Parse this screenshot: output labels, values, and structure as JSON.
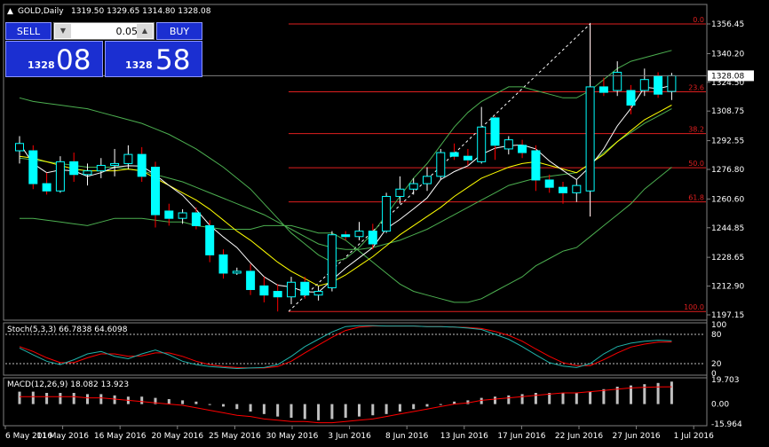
{
  "header": {
    "arrow": "▲",
    "symbol": "GOLD,Daily",
    "ohlc": "1319.50 1329.65 1314.80 1328.08"
  },
  "trade_panel": {
    "sell_label": "SELL",
    "buy_label": "BUY",
    "lot": "0.05",
    "sell_big": "1328",
    "sell_pips": "08",
    "buy_big": "1328",
    "buy_pips": "58"
  },
  "colors": {
    "bull": "#00ffff",
    "bear": "#ff0000",
    "bands": "#4caf50",
    "ma": "#ffff00",
    "price_line": "#ffffff",
    "fib": "#e01f1f",
    "stoch_main": "#20b2aa",
    "stoch_signal": "#ff0000",
    "macd_hist": "#c0c0c0",
    "macd_signal": "#ff0000"
  },
  "chart_data": {
    "type": "candlestick",
    "symbol": "GOLD",
    "timeframe": "Daily",
    "current_price": 1328.08,
    "price_axis": {
      "ylim": [
        1197.15,
        1356.45
      ],
      "ticks": [
        "1356.45",
        "1340.20",
        "1324.50",
        "1308.75",
        "1292.55",
        "1276.80",
        "1260.60",
        "1244.85",
        "1228.65",
        "1212.90",
        "1197.15"
      ],
      "current_label": "1328.08"
    },
    "x_labels": [
      "6 May 2016",
      "11 May 2016",
      "16 May 2016",
      "20 May 2016",
      "25 May 2016",
      "30 May 2016",
      "3 Jun 2016",
      "8 Jun 2016",
      "13 Jun 2016",
      "17 Jun 2016",
      "22 Jun 2016",
      "27 Jun 2016",
      "1 Jul 2016"
    ],
    "candles": [
      {
        "o": 1287,
        "h": 1295,
        "l": 1280,
        "c": 1291
      },
      {
        "o": 1287,
        "h": 1290,
        "l": 1266,
        "c": 1269
      },
      {
        "o": 1269,
        "h": 1275,
        "l": 1263,
        "c": 1265
      },
      {
        "o": 1265,
        "h": 1284,
        "l": 1264,
        "c": 1281
      },
      {
        "o": 1281,
        "h": 1286,
        "l": 1270,
        "c": 1274
      },
      {
        "o": 1274,
        "h": 1280,
        "l": 1268,
        "c": 1276
      },
      {
        "o": 1276,
        "h": 1283,
        "l": 1272,
        "c": 1279
      },
      {
        "o": 1279,
        "h": 1288,
        "l": 1273,
        "c": 1280
      },
      {
        "o": 1280,
        "h": 1290,
        "l": 1277,
        "c": 1285
      },
      {
        "o": 1285,
        "h": 1289,
        "l": 1270,
        "c": 1273
      },
      {
        "o": 1278,
        "h": 1281,
        "l": 1245,
        "c": 1252
      },
      {
        "o": 1254,
        "h": 1258,
        "l": 1246,
        "c": 1250
      },
      {
        "o": 1250,
        "h": 1255,
        "l": 1247,
        "c": 1253
      },
      {
        "o": 1253,
        "h": 1256,
        "l": 1244,
        "c": 1246
      },
      {
        "o": 1246,
        "h": 1249,
        "l": 1226,
        "c": 1230
      },
      {
        "o": 1230,
        "h": 1233,
        "l": 1217,
        "c": 1220
      },
      {
        "o": 1220,
        "h": 1223,
        "l": 1219,
        "c": 1221
      },
      {
        "o": 1221,
        "h": 1225,
        "l": 1208,
        "c": 1211
      },
      {
        "o": 1213,
        "h": 1218,
        "l": 1204,
        "c": 1208
      },
      {
        "o": 1210,
        "h": 1214,
        "l": 1199,
        "c": 1207
      },
      {
        "o": 1207,
        "h": 1218,
        "l": 1203,
        "c": 1215
      },
      {
        "o": 1215,
        "h": 1218,
        "l": 1206,
        "c": 1208
      },
      {
        "o": 1208,
        "h": 1213,
        "l": 1205,
        "c": 1210
      },
      {
        "o": 1212,
        "h": 1243,
        "l": 1210,
        "c": 1241
      },
      {
        "o": 1241,
        "h": 1243,
        "l": 1238,
        "c": 1240
      },
      {
        "o": 1240,
        "h": 1248,
        "l": 1238,
        "c": 1243
      },
      {
        "o": 1243,
        "h": 1247,
        "l": 1233,
        "c": 1236
      },
      {
        "o": 1243,
        "h": 1264,
        "l": 1242,
        "c": 1262
      },
      {
        "o": 1262,
        "h": 1273,
        "l": 1258,
        "c": 1266
      },
      {
        "o": 1266,
        "h": 1272,
        "l": 1263,
        "c": 1269
      },
      {
        "o": 1269,
        "h": 1278,
        "l": 1265,
        "c": 1273
      },
      {
        "o": 1273,
        "h": 1288,
        "l": 1271,
        "c": 1286
      },
      {
        "o": 1286,
        "h": 1291,
        "l": 1282,
        "c": 1284
      },
      {
        "o": 1284,
        "h": 1288,
        "l": 1279,
        "c": 1282
      },
      {
        "o": 1281,
        "h": 1311,
        "l": 1280,
        "c": 1300
      },
      {
        "o": 1305,
        "h": 1306,
        "l": 1282,
        "c": 1290
      },
      {
        "o": 1288,
        "h": 1295,
        "l": 1285,
        "c": 1293
      },
      {
        "o": 1290,
        "h": 1293,
        "l": 1283,
        "c": 1286
      },
      {
        "o": 1287,
        "h": 1290,
        "l": 1265,
        "c": 1271
      },
      {
        "o": 1271,
        "h": 1274,
        "l": 1264,
        "c": 1267
      },
      {
        "o": 1267,
        "h": 1270,
        "l": 1258,
        "c": 1264
      },
      {
        "o": 1264,
        "h": 1271,
        "l": 1259,
        "c": 1268
      },
      {
        "o": 1265,
        "h": 1357,
        "l": 1251,
        "c": 1322
      },
      {
        "o": 1322,
        "h": 1327,
        "l": 1317,
        "c": 1319
      },
      {
        "o": 1320,
        "h": 1336,
        "l": 1317,
        "c": 1330
      },
      {
        "o": 1320,
        "h": 1323,
        "l": 1307,
        "c": 1312
      },
      {
        "o": 1320,
        "h": 1332,
        "l": 1317,
        "c": 1326
      },
      {
        "o": 1328,
        "h": 1330,
        "l": 1316,
        "c": 1318
      },
      {
        "o": 1319.5,
        "h": 1329.65,
        "l": 1314.8,
        "c": 1328.08
      }
    ],
    "ma_close": [
      1284,
      1283,
      1281,
      1279,
      1277,
      1276,
      1276,
      1276,
      1277,
      1276,
      1272,
      1268,
      1264,
      1260,
      1255,
      1249,
      1243,
      1238,
      1232,
      1226,
      1221,
      1217,
      1213,
      1215,
      1219,
      1224,
      1229,
      1235,
      1241,
      1246,
      1251,
      1256,
      1262,
      1267,
      1272,
      1275,
      1278,
      1280,
      1281,
      1279,
      1277,
      1275,
      1280,
      1285,
      1292,
      1298,
      1304,
      1308,
      1312
    ],
    "bb_upper": [
      1316,
      1314,
      1313,
      1312,
      1311,
      1310,
      1308,
      1306,
      1304,
      1302,
      1299,
      1296,
      1292,
      1288,
      1283,
      1278,
      1272,
      1266,
      1258,
      1250,
      1242,
      1236,
      1230,
      1226,
      1228,
      1234,
      1242,
      1252,
      1262,
      1272,
      1280,
      1290,
      1300,
      1308,
      1314,
      1318,
      1322,
      1322,
      1320,
      1318,
      1316,
      1316,
      1320,
      1326,
      1332,
      1336,
      1338,
      1340,
      1342
    ],
    "bb_middle": [
      1283,
      1282,
      1281,
      1280,
      1279,
      1278,
      1278,
      1278,
      1277,
      1276,
      1274,
      1272,
      1270,
      1267,
      1264,
      1261,
      1258,
      1255,
      1252,
      1248,
      1244,
      1240,
      1236,
      1234,
      1233,
      1233,
      1234,
      1236,
      1238,
      1241,
      1244,
      1248,
      1252,
      1256,
      1260,
      1264,
      1268,
      1270,
      1272,
      1273,
      1274,
      1275,
      1280,
      1286,
      1292,
      1297,
      1302,
      1306,
      1310
    ],
    "bb_lower": [
      1250,
      1250,
      1249,
      1248,
      1247,
      1246,
      1248,
      1250,
      1250,
      1250,
      1249,
      1248,
      1248,
      1246,
      1245,
      1244,
      1244,
      1244,
      1246,
      1246,
      1246,
      1244,
      1242,
      1242,
      1238,
      1232,
      1226,
      1220,
      1214,
      1210,
      1208,
      1206,
      1204,
      1204,
      1206,
      1210,
      1214,
      1218,
      1224,
      1228,
      1232,
      1234,
      1240,
      1246,
      1252,
      1258,
      1266,
      1272,
      1278
    ],
    "fibonacci": {
      "high": 1356.45,
      "low": 1199.0,
      "levels": [
        {
          "label": "0.0",
          "price": 1356.45
        },
        {
          "label": "23.6",
          "price": 1319.3
        },
        {
          "label": "38.2",
          "price": 1296.4
        },
        {
          "label": "50.0",
          "price": 1277.7
        },
        {
          "label": "61.8",
          "price": 1259.0
        },
        {
          "label": "100.0",
          "price": 1199.0
        }
      ]
    },
    "stochastic": {
      "title": "Stoch(5,3,3) 66.7838 64.6098",
      "ylim": [
        0,
        100
      ],
      "ticks": [
        "100",
        "80",
        "20",
        "0"
      ],
      "levels": [
        80,
        20
      ],
      "main": [
        52,
        38,
        25,
        18,
        28,
        40,
        45,
        35,
        30,
        40,
        48,
        38,
        25,
        18,
        14,
        12,
        10,
        11,
        12,
        18,
        35,
        55,
        70,
        85,
        96,
        98,
        98,
        97,
        97,
        97,
        96,
        96,
        95,
        93,
        90,
        80,
        70,
        55,
        38,
        22,
        15,
        12,
        20,
        40,
        55,
        62,
        66,
        68,
        66.78
      ],
      "signal": [
        55,
        45,
        32,
        22,
        22,
        32,
        40,
        40,
        35,
        36,
        42,
        42,
        35,
        25,
        18,
        14,
        12,
        11,
        11,
        14,
        25,
        42,
        58,
        74,
        88,
        95,
        97,
        97,
        97,
        97,
        96,
        96,
        95,
        94,
        92,
        86,
        78,
        66,
        50,
        35,
        22,
        16,
        16,
        28,
        42,
        54,
        60,
        64,
        64.61
      ]
    },
    "macd": {
      "title": "MACD(12,26,9) 18.082 13.923",
      "ylim": [
        -15.964,
        19.703
      ],
      "ticks": [
        "19.703",
        "0.00",
        "-15.964"
      ],
      "hist": [
        10,
        10,
        9,
        9,
        9,
        8,
        8,
        7,
        6,
        6,
        5,
        4,
        3,
        2,
        0,
        -2,
        -4,
        -6,
        -8,
        -10,
        -11,
        -12,
        -13,
        -12,
        -11,
        -10,
        -9,
        -8,
        -6,
        -4,
        -2,
        0,
        2,
        3,
        5,
        6,
        7,
        8,
        9,
        9,
        9,
        9,
        10,
        12,
        14,
        15,
        16,
        17,
        18.082
      ],
      "signal": [
        6,
        6,
        6,
        6,
        6,
        5,
        5,
        4,
        3,
        2,
        1,
        0,
        -1,
        -3,
        -5,
        -7,
        -9,
        -10,
        -12,
        -13,
        -14,
        -14,
        -15,
        -15,
        -14,
        -13,
        -12,
        -10,
        -8,
        -6,
        -4,
        -2,
        0,
        1,
        3,
        4,
        5,
        6,
        7,
        8,
        9,
        9,
        10,
        11,
        12,
        13,
        13.5,
        13.8,
        13.923
      ]
    }
  }
}
